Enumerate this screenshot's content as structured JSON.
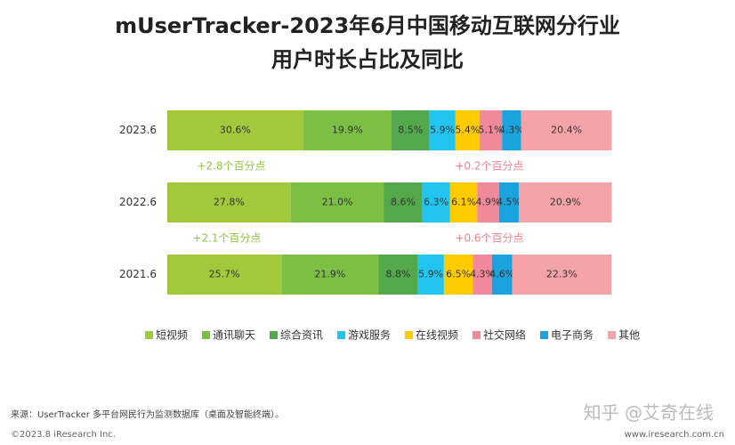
{
  "chart_data": {
    "type": "stacked-bar-horizontal",
    "title": "mUserTracker-2023年6月中国移动互联网分行业",
    "subtitle": "用户时长占比及同比",
    "categories": [
      "2023.6",
      "2022.6",
      "2021.6"
    ],
    "xlim": [
      0,
      100
    ],
    "series": [
      {
        "name": "短视频",
        "color": "#a2c83c",
        "values": [
          30.6,
          27.8,
          25.7
        ],
        "value_labels": [
          "30.6%",
          "27.8%",
          "25.7%"
        ]
      },
      {
        "name": "通讯聊天",
        "color": "#7cbf45",
        "values": [
          19.9,
          21.0,
          21.9
        ],
        "value_labels": [
          "19.9%",
          "21.0%",
          "21.9%"
        ]
      },
      {
        "name": "综合资讯",
        "color": "#52a84b",
        "values": [
          8.5,
          8.6,
          8.8
        ],
        "value_labels": [
          "8.5%",
          "8.6%",
          "8.8%"
        ]
      },
      {
        "name": "游戏服务",
        "color": "#22c4f0",
        "values": [
          5.9,
          6.3,
          5.9
        ],
        "value_labels": [
          "5.9%",
          "6.3%",
          "5.9%"
        ]
      },
      {
        "name": "在线视频",
        "color": "#ffcc00",
        "values": [
          5.4,
          6.1,
          6.5
        ],
        "value_labels": [
          "5.4%",
          "6.1%",
          "6.5%"
        ]
      },
      {
        "name": "社交网络",
        "color": "#f0899a",
        "values": [
          5.1,
          4.9,
          4.3
        ],
        "value_labels": [
          "5.1%",
          "4.9%",
          "4.3%"
        ]
      },
      {
        "name": "电子商务",
        "color": "#1aa3dd",
        "values": [
          4.3,
          4.5,
          4.6
        ],
        "value_labels": [
          "4.3%",
          "4.5%",
          "4.6%"
        ]
      },
      {
        "name": "其他",
        "color": "#f4a3a8",
        "values": [
          20.4,
          20.9,
          22.3
        ],
        "value_labels": [
          "20.4%",
          "20.9%",
          "22.3%"
        ]
      }
    ],
    "annotations": [
      {
        "text": "+2.8个百分点",
        "color": "#8dc63f"
      },
      {
        "text": "+0.2个百分点",
        "color": "#f07f8f"
      },
      {
        "text": "+2.1个百分点",
        "color": "#8dc63f"
      },
      {
        "text": "+0.6个百分点",
        "color": "#f07f8f"
      }
    ],
    "source": "来源：UserTracker 多平台网民行为监测数据库（桌面及智能终端）。",
    "copyright": "©2023.8 iResearch Inc.",
    "website": "www.iresearch.com.cn",
    "watermark": "知乎 @艾奇在线"
  }
}
